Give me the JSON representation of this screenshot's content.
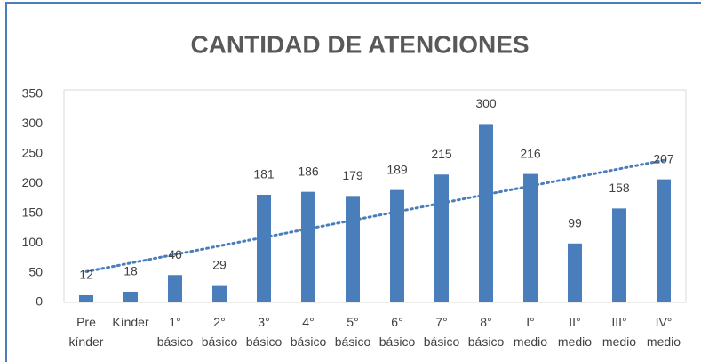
{
  "chart_data": {
    "type": "bar",
    "title": "CANTIDAD DE ATENCIONES",
    "categories": [
      "Pre kínder",
      "Kínder",
      "1° básico",
      "2° básico",
      "3° básico",
      "4° básico",
      "5° básico",
      "6° básico",
      "7° básico",
      "8° básico",
      "I° medio",
      "II° medio",
      "III° medio",
      "IV° medio"
    ],
    "values": [
      12,
      18,
      46,
      29,
      181,
      186,
      179,
      189,
      215,
      300,
      216,
      99,
      158,
      207
    ],
    "color": "#4a7ebb",
    "trendline": "linear",
    "trendline_color": "#4a7ebb",
    "ylim": [
      0,
      350
    ],
    "yticks": [
      0,
      50,
      100,
      150,
      200,
      250,
      300,
      350
    ],
    "grid": false
  }
}
